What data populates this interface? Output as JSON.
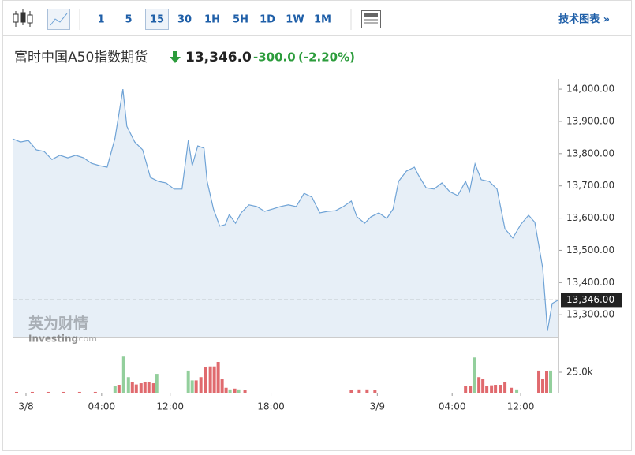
{
  "toolbar": {
    "intervals": [
      "1",
      "5",
      "15",
      "30",
      "1H",
      "5H",
      "1D",
      "1W",
      "1M"
    ],
    "selected_index": 2,
    "link": "技术图表 »"
  },
  "quote": {
    "name": "富时中国A50指数期货",
    "price": "13,346.0",
    "change": "-300.0",
    "change_pct": "(-2.20%)"
  },
  "watermark": {
    "cn": "英为财情",
    "en": "Investing",
    "suffix": ".com"
  },
  "chart_data": [
    {
      "type": "line",
      "color": "#6fa3d6",
      "fill": "#e7eff7",
      "xlim": [
        0,
        693
      ],
      "ylim": [
        13232,
        14032
      ],
      "xticks": [
        {
          "value": 17,
          "label": "3/8"
        },
        {
          "value": 113,
          "label": "04:00"
        },
        {
          "value": 200,
          "label": "12:00"
        },
        {
          "value": 328,
          "label": "18:00"
        },
        {
          "value": 463,
          "label": "3/9"
        },
        {
          "value": 558,
          "label": "04:00"
        },
        {
          "value": 645,
          "label": "12:00"
        }
      ],
      "yticks": [
        {
          "value": 13300,
          "label": "13,300.00"
        },
        {
          "value": 13400,
          "label": "13,400.00"
        },
        {
          "value": 13500,
          "label": "13,500.00"
        },
        {
          "value": 13600,
          "label": "13,600.00"
        },
        {
          "value": 13700,
          "label": "13,700.00"
        },
        {
          "value": 13800,
          "label": "13,800.00"
        },
        {
          "value": 13900,
          "label": "13,900.00"
        },
        {
          "value": 14000,
          "label": "14,000.00"
        }
      ],
      "last": {
        "value": 13346,
        "label": "13,346.00"
      },
      "x": [
        0,
        10,
        20,
        30,
        40,
        50,
        60,
        70,
        80,
        90,
        100,
        110,
        120,
        130,
        140,
        145,
        155,
        165,
        175,
        185,
        195,
        205,
        215,
        223,
        228,
        235,
        243,
        247,
        255,
        263,
        270,
        275,
        283,
        290,
        300,
        310,
        320,
        330,
        340,
        350,
        360,
        370,
        380,
        390,
        400,
        410,
        420,
        430,
        437,
        447,
        455,
        465,
        475,
        483,
        490,
        500,
        510,
        515,
        525,
        535,
        545,
        555,
        565,
        575,
        580,
        587,
        595,
        605,
        615,
        625,
        635,
        645,
        655,
        663,
        673,
        679,
        685,
        693
      ],
      "values": [
        13846,
        13836,
        13841,
        13812,
        13807,
        13782,
        13795,
        13787,
        13795,
        13787,
        13770,
        13763,
        13758,
        13848,
        14000,
        13885,
        13836,
        13812,
        13726,
        13714,
        13709,
        13690,
        13690,
        13841,
        13763,
        13824,
        13817,
        13714,
        13628,
        13575,
        13580,
        13611,
        13584,
        13616,
        13641,
        13636,
        13621,
        13628,
        13636,
        13641,
        13636,
        13677,
        13665,
        13616,
        13621,
        13623,
        13636,
        13653,
        13604,
        13584,
        13604,
        13616,
        13599,
        13628,
        13714,
        13746,
        13758,
        13734,
        13694,
        13690,
        13709,
        13682,
        13670,
        13714,
        13682,
        13768,
        13719,
        13714,
        13690,
        13567,
        13538,
        13580,
        13609,
        13587,
        13445,
        13250,
        13335,
        13346
      ]
    },
    {
      "type": "bar",
      "ylim": [
        0,
        50000
      ],
      "yticks": [
        {
          "value": 25000,
          "label": "25.0k"
        }
      ],
      "series": [
        {
          "color": "#e06a6e",
          "x": [
            5,
            25,
            45,
            65,
            85,
            105,
            135,
            152,
            157,
            163,
            168,
            173,
            179,
            233,
            239,
            245,
            251,
            256,
            261,
            266,
            271,
            282,
            295,
            430,
            440,
            450,
            460,
            575,
            581,
            592,
            597,
            602,
            608,
            613,
            619,
            625,
            633,
            668,
            673,
            678
          ],
          "values": [
            1000,
            1000,
            1000,
            1000,
            1000,
            1000,
            9600,
            13000,
            10000,
            11500,
            12500,
            12500,
            11500,
            15000,
            19000,
            31000,
            32000,
            32000,
            37500,
            17000,
            6000,
            5000,
            3000,
            3000,
            4000,
            4000,
            3000,
            8000,
            8000,
            19000,
            17000,
            8000,
            9000,
            9600,
            9600,
            12500,
            6000,
            27000,
            17000,
            26000
          ]
        },
        {
          "color": "#93cf9c",
          "x": [
            130,
            141,
            147,
            183,
            223,
            228,
            276,
            287,
            640,
            683
          ],
          "values": [
            7700,
            44000,
            19000,
            23000,
            27000,
            15000,
            4000,
            4000,
            4000,
            27000
          ]
        },
        {
          "color": "#93cf9c",
          "x": [
            586
          ],
          "values": [
            43000
          ]
        }
      ]
    }
  ]
}
